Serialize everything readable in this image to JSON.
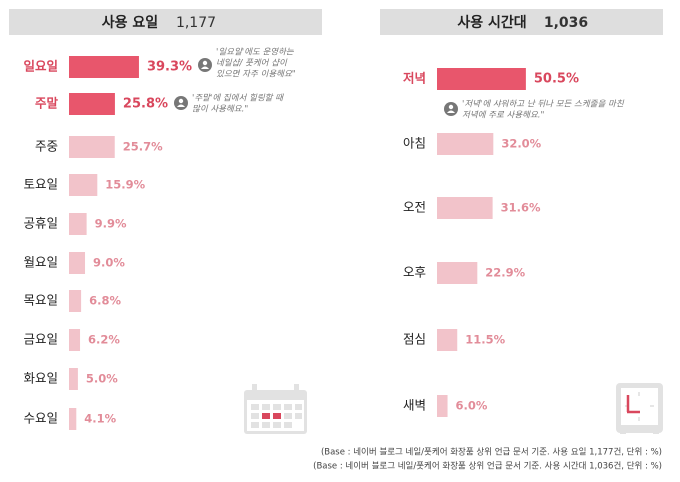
{
  "chart_data": [
    {
      "type": "bar",
      "title": "사용 요일",
      "subtitle": "1,177",
      "categories": [
        "일요일",
        "주말",
        "주중",
        "토요일",
        "공휴일",
        "월요일",
        "목요일",
        "금요일",
        "화요일",
        "수요일"
      ],
      "values": [
        39.3,
        25.8,
        25.7,
        15.9,
        9.9,
        9.0,
        6.8,
        6.2,
        5.0,
        4.1
      ],
      "value_labels": [
        "39.3%",
        "25.8%",
        "25.7%",
        "15.9%",
        "9.9%",
        "9.0%",
        "6.8%",
        "6.2%",
        "5.0%",
        "4.1%"
      ],
      "colors": [
        "#e8566c",
        "#e8566c",
        "#f2c3ca",
        "#f2c3ca",
        "#f2c3ca",
        "#f2c3ca",
        "#f2c3ca",
        "#f2c3ca",
        "#f2c3ca",
        "#f2c3ca"
      ],
      "annotations": [
        {
          "lines": [
            "'일요일'에도 운영하는",
            "네일샵/ 풋케어 샵이",
            "있으면 자주 이용해요\""
          ]
        },
        {
          "lines": [
            "'주말'에 집에서 힐링할 때",
            "많이 사용해요.\""
          ]
        }
      ],
      "footnote": "(Base : 네이버 블로그 네일/풋케어 화장품 상위 언급 문서 기준. 사용 요일 1,177건, 단위 : %)"
    },
    {
      "type": "bar",
      "title": "사용 시간대",
      "subtitle": "1,036",
      "categories": [
        "저녁",
        "아침",
        "오전",
        "오후",
        "점심",
        "새벽"
      ],
      "values": [
        50.5,
        32.0,
        31.6,
        22.9,
        11.5,
        6.0
      ],
      "value_labels": [
        "50.5%",
        "32.0%",
        "31.6%",
        "22.9%",
        "11.5%",
        "6.0%"
      ],
      "colors": [
        "#e8566c",
        "#f2c3ca",
        "#f2c3ca",
        "#f2c3ca",
        "#f2c3ca",
        "#f2c3ca"
      ],
      "annotations": [
        {
          "lines": [
            "'저녁'에 샤워하고 난 뒤나 모든 스케줄을 마친",
            "저녁에 주로 사용해요.\""
          ]
        }
      ],
      "footnote": "(Base : 네이버 블로그 네일/풋케어 화장품 상위 언급 문서 기준. 사용 시간대 1,036건, 단위 : %)"
    }
  ]
}
